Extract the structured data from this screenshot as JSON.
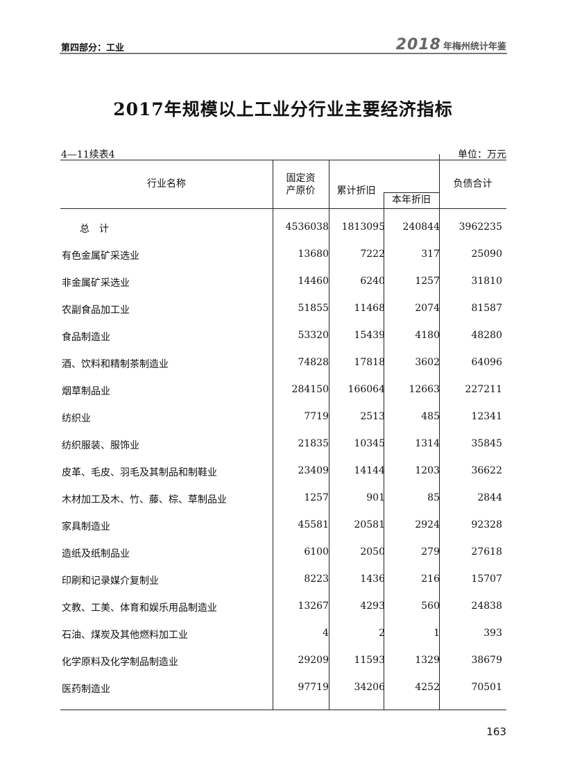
{
  "header": {
    "section": "第四部分：工业",
    "yearbook_year": "2018",
    "yearbook_title": "年梅州统计年鉴"
  },
  "title": "2017年规模以上工业分行业主要经济指标",
  "table_number": "4—11续表4",
  "unit": "单位：万元",
  "columns": {
    "name": "行业名称",
    "fixed_assets_1": "固定资",
    "fixed_assets_2": "产原价",
    "acc_depr": "累计折旧",
    "year_depr": "本年折旧",
    "liabilities": "负债合计"
  },
  "rows": [
    {
      "name": "总　计",
      "v": [
        "4536038",
        "1813095",
        "240844",
        "3962235"
      ]
    },
    {
      "name": "有色金属矿采选业",
      "v": [
        "13680",
        "7222",
        "317",
        "25090"
      ]
    },
    {
      "name": "非金属矿采选业",
      "v": [
        "14460",
        "6240",
        "1257",
        "31810"
      ]
    },
    {
      "name": "农副食品加工业",
      "v": [
        "51855",
        "11468",
        "2074",
        "81587"
      ]
    },
    {
      "name": "食品制造业",
      "v": [
        "53320",
        "15439",
        "4180",
        "48280"
      ]
    },
    {
      "name": "酒、饮料和精制茶制造业",
      "v": [
        "74828",
        "17818",
        "3602",
        "64096"
      ]
    },
    {
      "name": "烟草制品业",
      "v": [
        "284150",
        "166064",
        "12663",
        "227211"
      ]
    },
    {
      "name": "纺织业",
      "v": [
        "7719",
        "2513",
        "485",
        "12341"
      ]
    },
    {
      "name": "纺织服装、服饰业",
      "v": [
        "21835",
        "10345",
        "1314",
        "35845"
      ]
    },
    {
      "name": "皮革、毛皮、羽毛及其制品和制鞋业",
      "v": [
        "23409",
        "14144",
        "1203",
        "36622"
      ]
    },
    {
      "name": "木材加工及木、竹、藤、棕、草制品业",
      "v": [
        "1257",
        "901",
        "85",
        "2844"
      ]
    },
    {
      "name": "家具制造业",
      "v": [
        "45581",
        "20581",
        "2924",
        "92328"
      ]
    },
    {
      "name": "造纸及纸制品业",
      "v": [
        "6100",
        "2050",
        "279",
        "27618"
      ]
    },
    {
      "name": "印刷和记录媒介复制业",
      "v": [
        "8223",
        "1436",
        "216",
        "15707"
      ]
    },
    {
      "name": "文教、工美、体育和娱乐用品制造业",
      "v": [
        "13267",
        "4293",
        "560",
        "24838"
      ]
    },
    {
      "name": "石油、煤炭及其他燃料加工业",
      "v": [
        "4",
        "2",
        "1",
        "393"
      ]
    },
    {
      "name": "化学原料及化学制品制造业",
      "v": [
        "29209",
        "11593",
        "1329",
        "38679"
      ]
    },
    {
      "name": "医药制造业",
      "v": [
        "97719",
        "34206",
        "4252",
        "70501"
      ]
    }
  ],
  "page_number": "163"
}
